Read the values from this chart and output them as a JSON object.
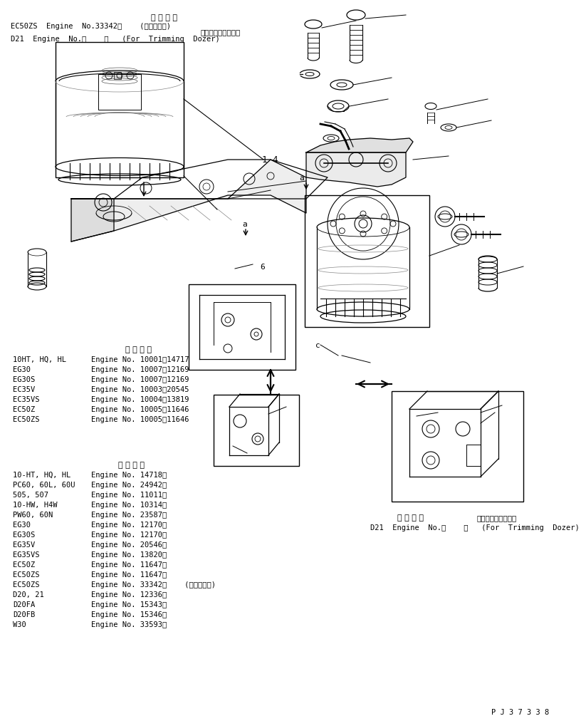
{
  "bg_color": "#ffffff",
  "line_color": "#000000",
  "title_top": "適 用 号 機",
  "line1": "EC50ZS  Engine  No.33342～    (ニッケン向)",
  "line2_jp": "トリミングドーザ用",
  "line2": "D21  Engine  No.・    ～   (For  Trimming  Dozer)",
  "section1_title": "適 用 号 機",
  "section1_rows": [
    [
      "10HT, HQ, HL",
      "Engine No. 10001～14717"
    ],
    [
      "EG30",
      "Engine No. 10007～12169"
    ],
    [
      "EG30S",
      "Engine No. 10007～12169"
    ],
    [
      "EC35V",
      "Engine No. 10003～20545"
    ],
    [
      "EC35VS",
      "Engine No. 10004～13819"
    ],
    [
      "EC50Z",
      "Engine No. 10005～11646"
    ],
    [
      "EC50ZS",
      "Engine No. 10005～11646"
    ]
  ],
  "section2_title": "適 用 号 機",
  "section2_rows": [
    [
      "10-HT, HQ, HL",
      "Engine No. 14718～"
    ],
    [
      "PC60, 60L, 60U",
      "Engine No. 24942～"
    ],
    [
      "505, 507",
      "Engine No. 11011～"
    ],
    [
      "10-HW, H4W",
      "Engine No. 10314～"
    ],
    [
      "PW60, 60N",
      "Engine No. 23587～"
    ],
    [
      "EG30",
      "Engine No. 12170～"
    ],
    [
      "EG30S",
      "Engine No. 12170～"
    ],
    [
      "EG35V",
      "Engine No. 20546～"
    ],
    [
      "EG35VS",
      "Engine No. 13820～"
    ],
    [
      "EC50Z",
      "Engine No. 11647～"
    ],
    [
      "EC50ZS",
      "Engine No. 11647～"
    ],
    [
      "EC50ZS",
      "Engine No. 33342～    (ニッケン向)"
    ],
    [
      "D20, 21",
      "Engine No. 12336～"
    ],
    [
      "D20FA",
      "Engine No. 15343～"
    ],
    [
      "D20FB",
      "Engine No. 15346～"
    ],
    [
      "W30",
      "Engine No. 33593～"
    ]
  ],
  "bottom_right_label1": "適 用 号 機",
  "bottom_right_label2": "トリミングドーザ用",
  "bottom_right_label3": "D21  Engine  No.・    ～   (For  Trimming  Dozer)",
  "label_14": "1 4",
  "label_6": "6",
  "label_a1": "a",
  "label_a2": "a",
  "label_c": "c",
  "part_number": "P J 3 7 3 3 8"
}
